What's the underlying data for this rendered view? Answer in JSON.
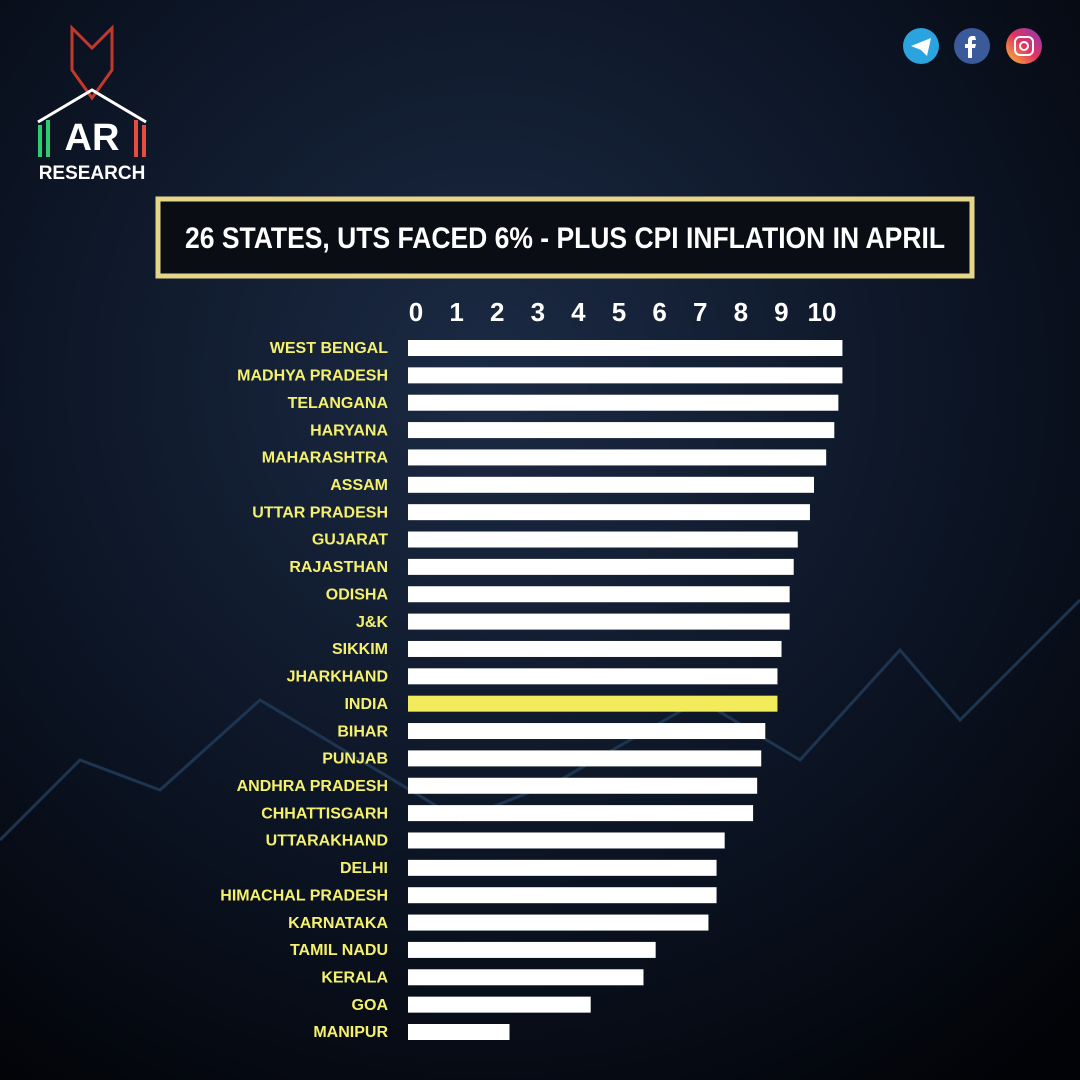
{
  "brand": {
    "name": "AR",
    "tagline": "RESEARCH"
  },
  "chart_data": {
    "type": "bar",
    "orientation": "horizontal",
    "title": "26 STATES, UTS FACED 6% - PLUS CPI INFLATION IN APRIL",
    "categories": [
      "WEST BENGAL",
      "MADHYA PRADESH",
      "TELANGANA",
      "HARYANA",
      "MAHARASHTRA",
      "ASSAM",
      "UTTAR PRADESH",
      "GUJARAT",
      "RAJASTHAN",
      "ODISHA",
      "J&K",
      "SIKKIM",
      "JHARKHAND",
      "INDIA",
      "BIHAR",
      "PUNJAB",
      "ANDHRA PRADESH",
      "CHHATTISGARH",
      "UTTARAKHAND",
      "DELHI",
      "HIMACHAL PRADESH",
      "KARNATAKA",
      "TAMIL NADU",
      "KERALA",
      "GOA",
      "MANIPUR"
    ],
    "values": [
      10.7,
      10.7,
      10.6,
      10.5,
      10.3,
      10.0,
      9.9,
      9.6,
      9.5,
      9.4,
      9.4,
      9.2,
      9.1,
      9.1,
      8.8,
      8.7,
      8.6,
      8.5,
      7.8,
      7.6,
      7.6,
      7.4,
      6.1,
      5.8,
      4.5,
      2.5
    ],
    "color": "#ffffff",
    "highlight": {
      "category": "INDIA",
      "color": "#f2ec5c"
    },
    "label_color": "#f5f06e",
    "xlim": [
      0,
      10.8
    ],
    "xticks": [
      0,
      1,
      2,
      3,
      4,
      5,
      6,
      7,
      8,
      9,
      10
    ],
    "grid": false
  }
}
